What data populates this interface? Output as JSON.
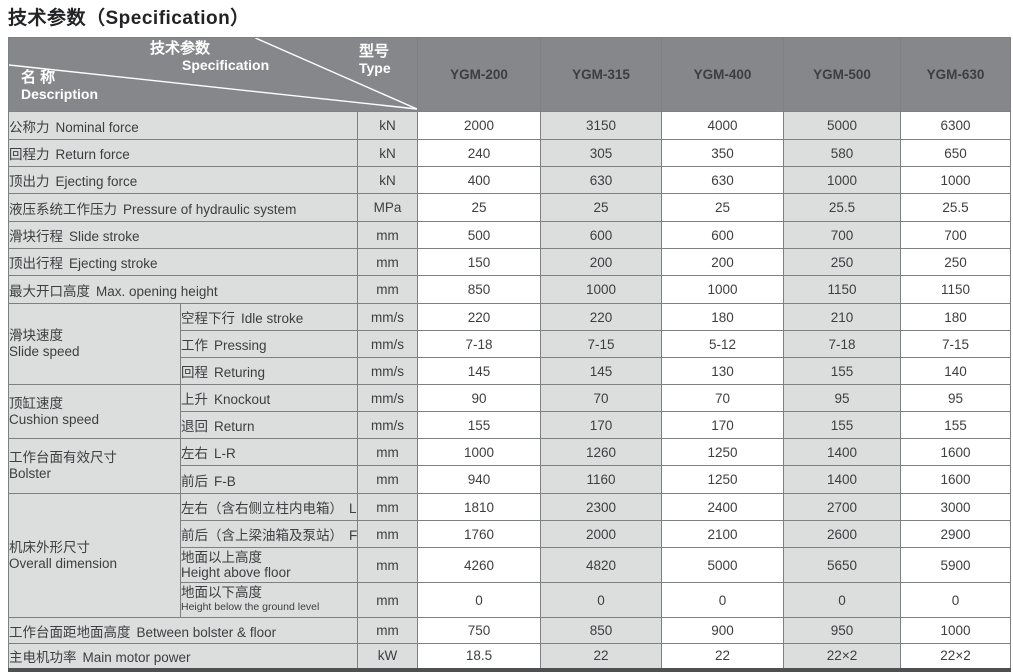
{
  "title": "技术参数（Specification）",
  "colors": {
    "header_bg": "#85878a",
    "cell_gray": "#dcdddd",
    "grid_line": "#7e8082",
    "bottom_border": "#4d4f51",
    "header_text": "#ffffff",
    "body_text": "#3c3e40"
  },
  "table": {
    "corner": {
      "spec_zh": "技术参数",
      "spec_en": "Specification",
      "name_zh": "名 称",
      "name_en": "Description",
      "type_zh": "型号",
      "type_en": "Type"
    },
    "models": [
      "YGM-200",
      "YGM-315",
      "YGM-400",
      "YGM-500",
      "YGM-630"
    ],
    "rows": [
      {
        "zh": "公称力",
        "en": "Nominal force",
        "unit": "kN",
        "values": [
          "2000",
          "3150",
          "4000",
          "5000",
          "6300"
        ]
      },
      {
        "zh": "回程力",
        "en": "Return force",
        "unit": "kN",
        "values": [
          "240",
          "305",
          "350",
          "580",
          "650"
        ]
      },
      {
        "zh": "顶出力",
        "en": "Ejecting force",
        "unit": "kN",
        "values": [
          "400",
          "630",
          "630",
          "1000",
          "1000"
        ]
      },
      {
        "zh": "液压系统工作压力",
        "en": "Pressure of hydraulic system",
        "unit": "MPa",
        "values": [
          "25",
          "25",
          "25",
          "25.5",
          "25.5"
        ]
      },
      {
        "zh": "滑块行程",
        "en": "Slide stroke",
        "unit": "mm",
        "values": [
          "500",
          "600",
          "600",
          "700",
          "700"
        ]
      },
      {
        "zh": "顶出行程",
        "en": "Ejecting stroke",
        "unit": "mm",
        "values": [
          "150",
          "200",
          "200",
          "250",
          "250"
        ]
      },
      {
        "zh": "最大开口高度",
        "en": "Max. opening height",
        "unit": "mm",
        "values": [
          "850",
          "1000",
          "1000",
          "1150",
          "1150"
        ]
      },
      {
        "group": {
          "zh": "滑块速度",
          "en": "Slide speed",
          "span": 3
        },
        "sub": {
          "zh": "空程下行",
          "en": "Idle stroke"
        },
        "unit": "mm/s",
        "values": [
          "220",
          "220",
          "180",
          "210",
          "180"
        ]
      },
      {
        "sub": {
          "zh": "工作",
          "en": "Pressing"
        },
        "unit": "mm/s",
        "values": [
          "7-18",
          "7-15",
          "5-12",
          "7-18",
          "7-15"
        ]
      },
      {
        "sub": {
          "zh": "回程",
          "en": "Returing"
        },
        "unit": "mm/s",
        "values": [
          "145",
          "145",
          "130",
          "155",
          "140"
        ]
      },
      {
        "group": {
          "zh": "顶缸速度",
          "en": "Cushion speed",
          "span": 2
        },
        "sub": {
          "zh": "上升",
          "en": "Knockout"
        },
        "unit": "mm/s",
        "values": [
          "90",
          "70",
          "70",
          "95",
          "95"
        ]
      },
      {
        "sub": {
          "zh": "退回",
          "en": "Return"
        },
        "unit": "mm/s",
        "values": [
          "155",
          "170",
          "170",
          "155",
          "155"
        ]
      },
      {
        "group": {
          "zh": "工作台面有效尺寸",
          "en": "Bolster",
          "span": 2
        },
        "sub": {
          "zh": "左右",
          "en": "L-R"
        },
        "unit": "mm",
        "values": [
          "1000",
          "1260",
          "1250",
          "1400",
          "1600"
        ]
      },
      {
        "sub": {
          "zh": "前后",
          "en": "F-B"
        },
        "unit": "mm",
        "values": [
          "940",
          "1160",
          "1250",
          "1400",
          "1600"
        ]
      },
      {
        "group": {
          "zh": "机床外形尺寸",
          "en": "Overall dimension",
          "span": 4
        },
        "sub": {
          "zh": "左右（含右侧立柱内电箱）",
          "en": "L-R"
        },
        "unit": "mm",
        "values": [
          "1810",
          "2300",
          "2400",
          "2700",
          "3000"
        ]
      },
      {
        "sub": {
          "zh": "前后（含上梁油箱及泵站）",
          "en": "F-B"
        },
        "unit": "mm",
        "values": [
          "1760",
          "2000",
          "2100",
          "2600",
          "2900"
        ]
      },
      {
        "sub": {
          "zh": "地面以上高度",
          "en": "Height above floor",
          "stacked": true
        },
        "unit": "mm",
        "values": [
          "4260",
          "4820",
          "5000",
          "5650",
          "5900"
        ]
      },
      {
        "sub": {
          "zh": "地面以下高度",
          "en": "Height below the ground level",
          "stacked": true,
          "small_en": true
        },
        "unit": "mm",
        "values": [
          "0",
          "0",
          "0",
          "0",
          "0"
        ]
      },
      {
        "zh": "工作台面距地面高度",
        "en": "Between bolster & floor",
        "unit": "mm",
        "values": [
          "750",
          "850",
          "900",
          "950",
          "1000"
        ]
      },
      {
        "zh": "主电机功率",
        "en": "Main motor power",
        "unit": "kW",
        "values": [
          "18.5",
          "22",
          "22",
          "22×2",
          "22×2"
        ]
      }
    ]
  }
}
